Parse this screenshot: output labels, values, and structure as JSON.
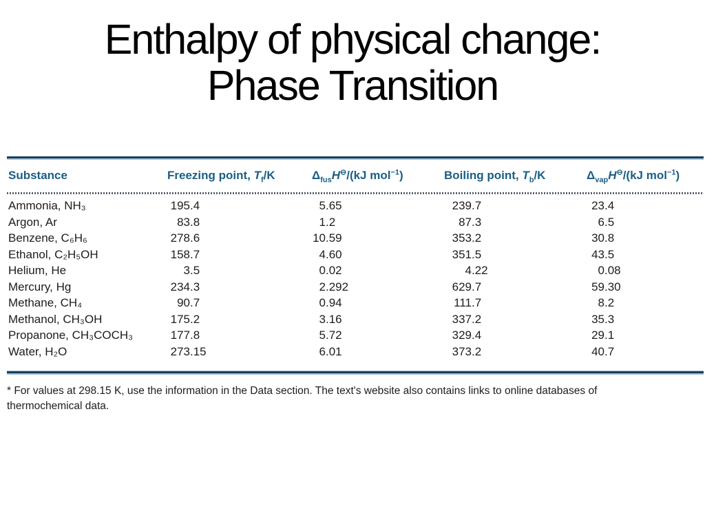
{
  "slide": {
    "title_line1": "Enthalpy of physical change:",
    "title_line2": "Phase Transition"
  },
  "colors": {
    "header_text": "#1a5e84",
    "rule_dark": "#1b3f5c",
    "rule_light": "#a3c2d5",
    "dotted_rule": "#55606a",
    "body_text": "#1c1c1c",
    "title_text": "#000000",
    "background": "#ffffff"
  },
  "table": {
    "columns": [
      {
        "key": "substance",
        "label_html": "Substance"
      },
      {
        "key": "freezing",
        "label_html": "Freezing point, <i>T</i><sub>f</sub>/K"
      },
      {
        "key": "dfus",
        "label_html": "Δ<sub>fus</sub><i>H</i><sup>⊖</sup>/(kJ mol<sup>−1</sup>)"
      },
      {
        "key": "boiling",
        "label_html": "Boiling point, <i>T</i><sub>b</sub>/K"
      },
      {
        "key": "dvap",
        "label_html": "Δ<sub>vap</sub><i>H</i><sup>⊖</sup>/(kJ mol<sup>−1</sup>)"
      }
    ],
    "rows": [
      {
        "substance": "Ammonia, NH₃",
        "freezing": "195.4",
        "dfus": "5.65",
        "boiling": "239.7",
        "dvap": "23.4"
      },
      {
        "substance": "Argon, Ar",
        "freezing": "83.8",
        "dfus": "1.2",
        "boiling": "87.3",
        "dvap": "6.5"
      },
      {
        "substance": "Benzene, C₆H₆",
        "freezing": "278.6",
        "dfus": "10.59",
        "boiling": "353.2",
        "dvap": "30.8"
      },
      {
        "substance": "Ethanol, C₂H₅OH",
        "freezing": "158.7",
        "dfus": "4.60",
        "boiling": "351.5",
        "dvap": "43.5"
      },
      {
        "substance": "Helium, He",
        "freezing": "3.5",
        "dfus": "0.02",
        "boiling": "4.22",
        "dvap": "0.08"
      },
      {
        "substance": "Mercury, Hg",
        "freezing": "234.3",
        "dfus": "2.292",
        "boiling": "629.7",
        "dvap": "59.30"
      },
      {
        "substance": "Methane, CH₄",
        "freezing": "90.7",
        "dfus": "0.94",
        "boiling": "111.7",
        "dvap": "8.2"
      },
      {
        "substance": "Methanol, CH₃OH",
        "freezing": "175.2",
        "dfus": "3.16",
        "boiling": "337.2",
        "dvap": "35.3"
      },
      {
        "substance": "Propanone, CH₃COCH₃",
        "freezing": "177.8",
        "dfus": "5.72",
        "boiling": "329.4",
        "dvap": "29.1"
      },
      {
        "substance": "Water, H₂O",
        "freezing": "273.15",
        "dfus": "6.01",
        "boiling": "373.2",
        "dvap": "40.7"
      }
    ],
    "footnote": "* For values at 298.15 K, use the information in the Data section. The text's website also contains links to online databases of thermochemical data."
  }
}
